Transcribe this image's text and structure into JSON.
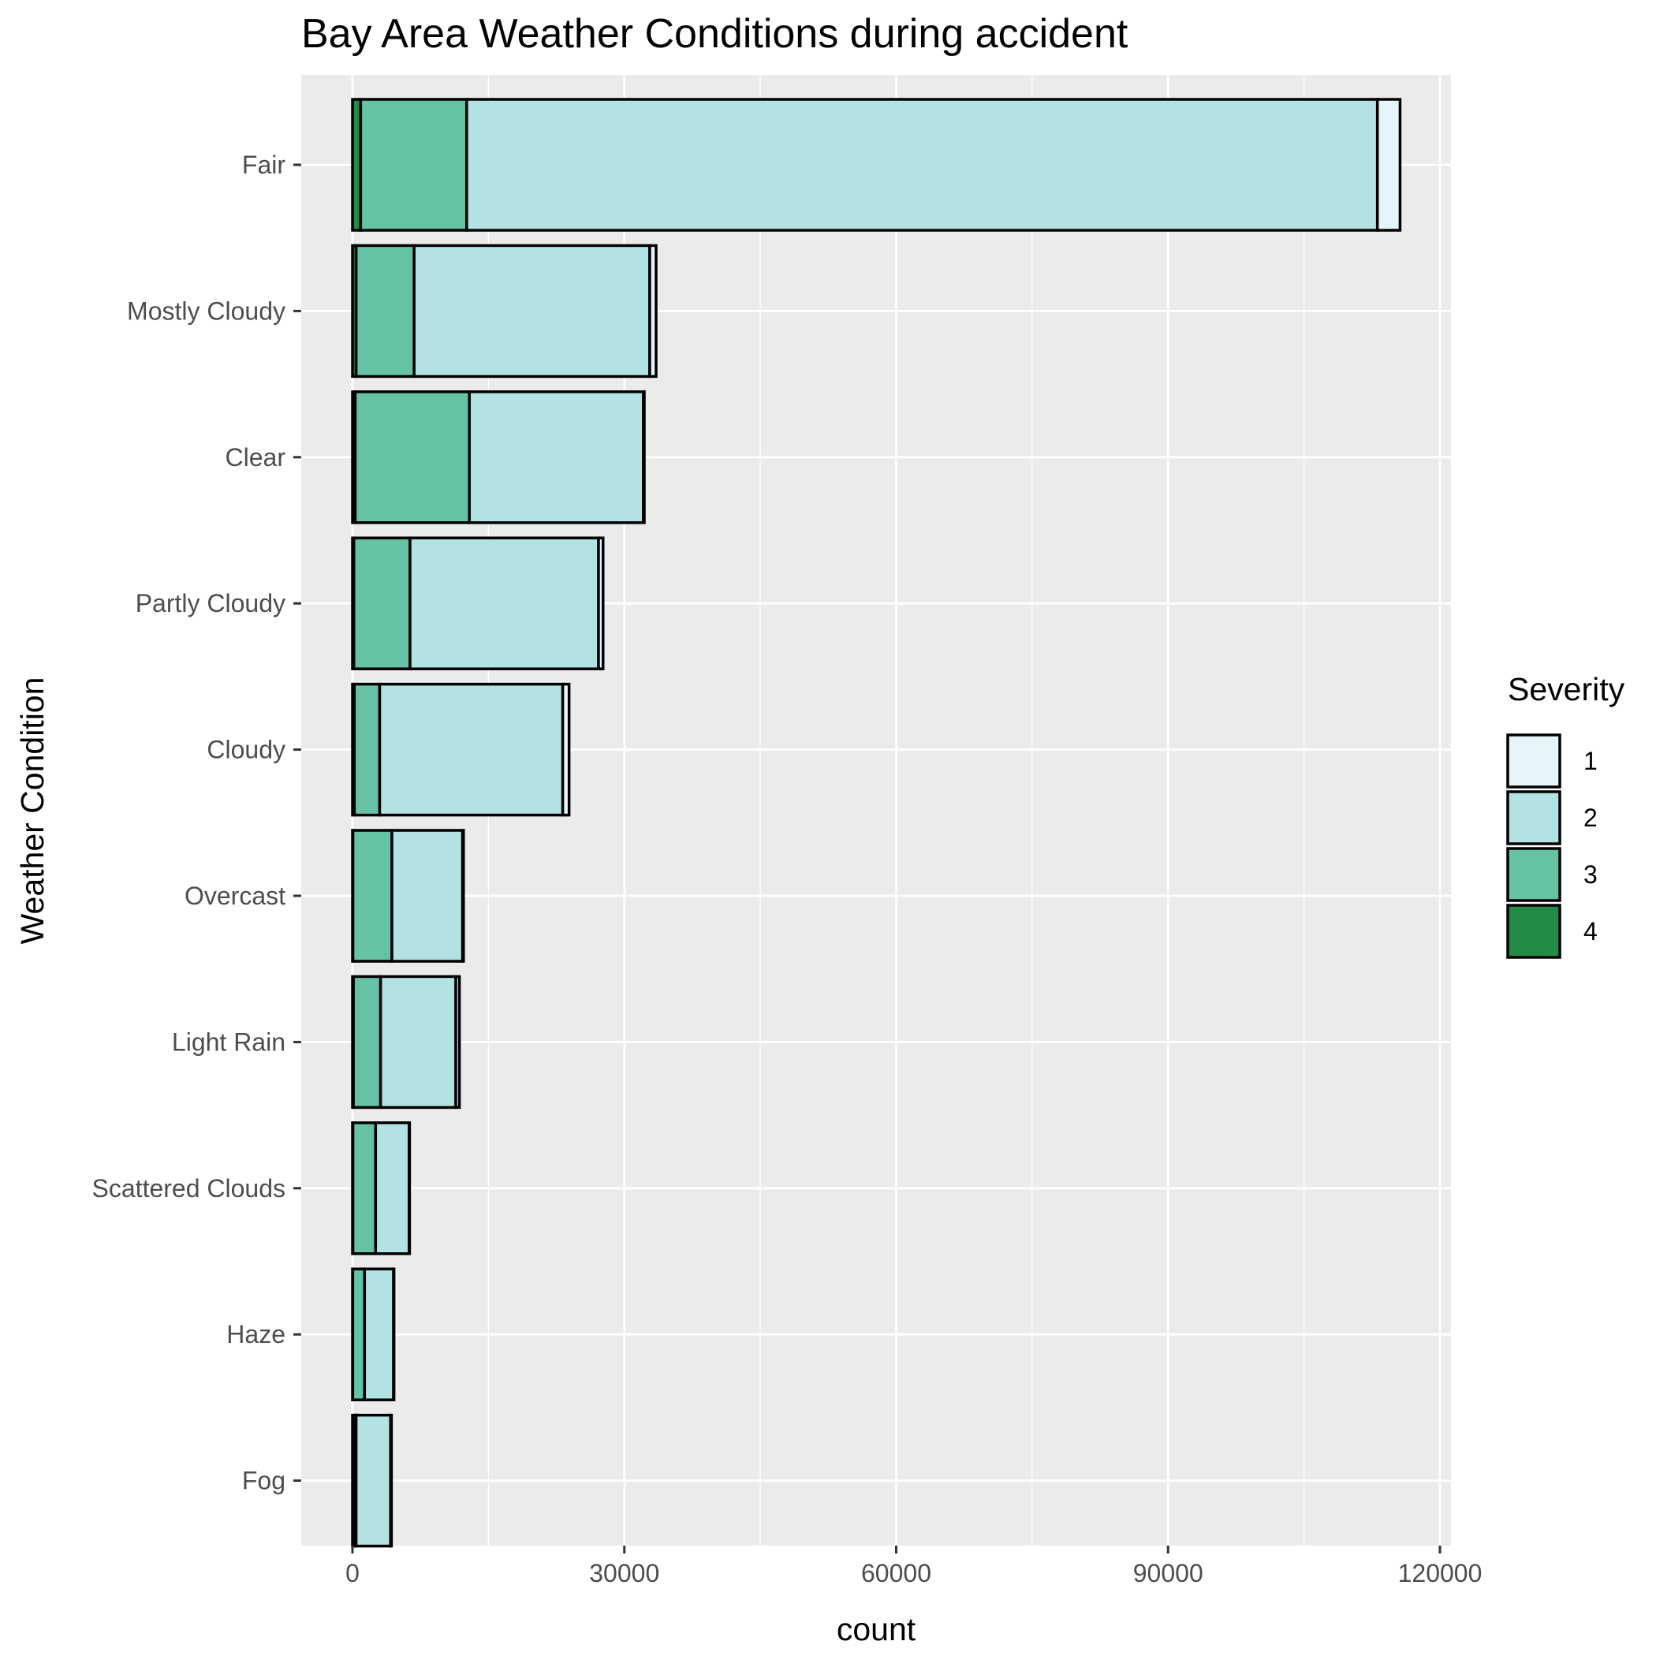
{
  "chart_data": {
    "type": "bar",
    "orientation": "horizontal",
    "stacked": true,
    "title": "Bay Area Weather Conditions during accident",
    "xlabel": "count",
    "ylabel": "Weather Condition",
    "xlim": [
      0,
      120000
    ],
    "xticks": [
      0,
      30000,
      60000,
      90000,
      120000
    ],
    "xtick_labels": [
      "0",
      "30000",
      "60000",
      "90000",
      "120000"
    ],
    "grid": true,
    "legend_placement": "right",
    "categories": [
      "Fair",
      "Mostly Cloudy",
      "Clear",
      "Partly Cloudy",
      "Cloudy",
      "Overcast",
      "Light Rain",
      "Scattered Clouds",
      "Haze",
      "Fog"
    ],
    "legend": {
      "title": "Severity",
      "entries": [
        {
          "label": "1",
          "color": "#e5f5f9"
        },
        {
          "label": "2",
          "color": "#b2e2e2"
        },
        {
          "label": "3",
          "color": "#66c2a4"
        },
        {
          "label": "4",
          "color": "#238b45"
        }
      ]
    },
    "series": [
      {
        "name": "4",
        "color": "#238b45",
        "values": [
          900,
          400,
          300,
          150,
          200,
          50,
          100,
          50,
          30,
          300
        ]
      },
      {
        "name": "3",
        "color": "#66c2a4",
        "values": [
          11700,
          6400,
          12600,
          6200,
          2800,
          4300,
          3000,
          2500,
          1300,
          100
        ]
      },
      {
        "name": "2",
        "color": "#b2e2e2",
        "values": [
          100500,
          26000,
          19200,
          20800,
          20200,
          7800,
          8300,
          3700,
          3200,
          3800
        ]
      },
      {
        "name": "1",
        "color": "#e5f5f9",
        "values": [
          2500,
          700,
          100,
          500,
          700,
          100,
          400,
          50,
          50,
          100
        ]
      }
    ]
  }
}
